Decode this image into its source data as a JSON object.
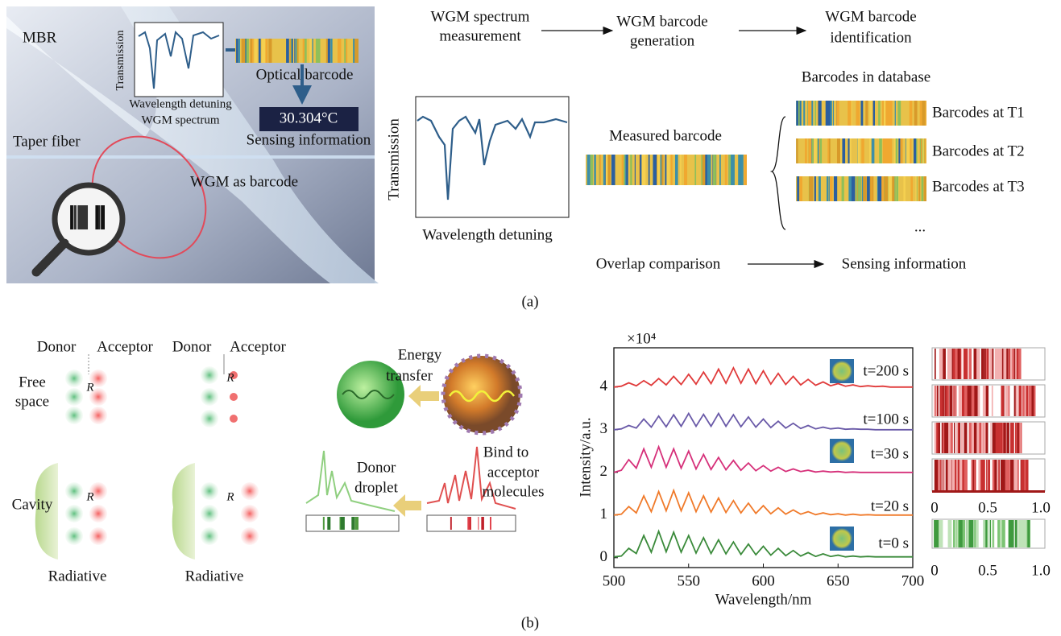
{
  "panel_a": {
    "photo": {
      "mbr": "MBR",
      "inset_y": "Transmission",
      "inset_x": [
        "Wavelength detuning",
        "WGM spectrum"
      ],
      "optical_barcode": "Optical barcode",
      "temperature": "30.304°C",
      "sensing": "Sensing information",
      "taper": "Taper fiber",
      "wgm": "WGM as barcode"
    },
    "flow": {
      "steps": [
        [
          "WGM spectrum",
          "measurement"
        ],
        [
          "WGM barcode",
          "generation"
        ],
        [
          "WGM barcode",
          "identification"
        ]
      ],
      "spectrum_y": "Transmission",
      "spectrum_x": "Wavelength detuning",
      "measured": "Measured barcode",
      "database": "Barcodes in database",
      "barcodes": [
        "Barcodes at T1",
        "Barcodes at T2",
        "Barcodes at T3"
      ],
      "more": "...",
      "comparison": "Overlap comparison",
      "result": "Sensing information"
    },
    "label": "(a)"
  },
  "panel_b": {
    "schematic": {
      "donor": [
        "Donor",
        "Donor"
      ],
      "acceptor": [
        "Acceptor",
        "Acceptor"
      ],
      "free_space": [
        "Free",
        "space"
      ],
      "cavity": "Cavity",
      "r": [
        "R",
        "R",
        "R",
        "R"
      ],
      "radiative": [
        "Radiative",
        "Radiative"
      ],
      "energy_transfer": [
        "Energy",
        "transfer"
      ],
      "donor_droplet": [
        "Donor",
        "droplet"
      ],
      "bind": [
        "Bind to",
        "acceptor",
        "molecules"
      ]
    },
    "colorbar_ticks": [
      0,
      0.5,
      {
        "value": 1,
        "label": "1.0"
      }
    ],
    "label": "(b)"
  },
  "chart_data": {
    "type": "line",
    "xlabel": "Wavelength/nm",
    "ylabel": "Intensity/a.u.",
    "y_multiplier": "×10⁴",
    "x": [
      500,
      505,
      510,
      515,
      520,
      525,
      530,
      535,
      540,
      545,
      550,
      555,
      560,
      565,
      570,
      575,
      580,
      585,
      590,
      595,
      600,
      605,
      610,
      615,
      620,
      625,
      630,
      635,
      640,
      645,
      650,
      655,
      660,
      665,
      670,
      675,
      680,
      685,
      690,
      695,
      700
    ],
    "series": [
      {
        "name": "t=0 s",
        "color": "#3a8a3a",
        "values": [
          0.02,
          0.04,
          0.22,
          0.1,
          0.52,
          0.13,
          0.62,
          0.14,
          0.6,
          0.13,
          0.52,
          0.11,
          0.47,
          0.1,
          0.42,
          0.09,
          0.37,
          0.08,
          0.32,
          0.07,
          0.27,
          0.06,
          0.22,
          0.05,
          0.17,
          0.04,
          0.12,
          0.03,
          0.09,
          0.03,
          0.06,
          0.02,
          0.04,
          0.02,
          0.03,
          0.02,
          0.02,
          0.02,
          0.02,
          0.02,
          0.02
        ]
      },
      {
        "name": "t=20 s",
        "color": "#f07a2a",
        "values": [
          1.0,
          1.02,
          1.2,
          1.05,
          1.45,
          1.08,
          1.55,
          1.1,
          1.58,
          1.1,
          1.52,
          1.08,
          1.45,
          1.07,
          1.4,
          1.06,
          1.34,
          1.05,
          1.28,
          1.04,
          1.22,
          1.03,
          1.17,
          1.02,
          1.12,
          1.02,
          1.08,
          1.01,
          1.05,
          1.01,
          1.03,
          1.0,
          1.02,
          1.0,
          1.01,
          1.0,
          1.0,
          1.0,
          1.0,
          1.0,
          1.0
        ]
      },
      {
        "name": "t=30 s",
        "color": "#d6307a",
        "values": [
          2.0,
          2.05,
          2.3,
          2.1,
          2.55,
          2.12,
          2.6,
          2.12,
          2.55,
          2.1,
          2.5,
          2.08,
          2.42,
          2.07,
          2.35,
          2.06,
          2.28,
          2.05,
          2.22,
          2.04,
          2.16,
          2.03,
          2.12,
          2.02,
          2.08,
          2.02,
          2.05,
          2.01,
          2.03,
          2.01,
          2.02,
          2.0,
          2.01,
          2.0,
          2.0,
          2.0,
          2.0,
          2.0,
          2.0,
          2.0,
          2.0
        ]
      },
      {
        "name": "t=100 s",
        "color": "#6a5aa8",
        "values": [
          3.0,
          3.02,
          3.1,
          3.04,
          3.25,
          3.06,
          3.32,
          3.07,
          3.35,
          3.08,
          3.38,
          3.08,
          3.36,
          3.08,
          3.38,
          3.08,
          3.35,
          3.07,
          3.3,
          3.06,
          3.25,
          3.05,
          3.2,
          3.04,
          3.15,
          3.03,
          3.1,
          3.02,
          3.06,
          3.02,
          3.04,
          3.01,
          3.02,
          3.01,
          3.01,
          3.0,
          3.0,
          3.0,
          3.0,
          3.0,
          3.0
        ]
      },
      {
        "name": "t=200 s",
        "color": "#e03a3a",
        "values": [
          4.0,
          4.02,
          4.1,
          4.03,
          4.15,
          4.04,
          4.2,
          4.05,
          4.25,
          4.06,
          4.3,
          4.07,
          4.35,
          4.08,
          4.42,
          4.09,
          4.45,
          4.09,
          4.42,
          4.08,
          4.38,
          4.07,
          4.32,
          4.06,
          4.25,
          4.05,
          4.18,
          4.04,
          4.12,
          4.03,
          4.08,
          4.02,
          4.05,
          4.01,
          4.03,
          4.01,
          4.02,
          4.0,
          4.0,
          4.0,
          4.0
        ]
      }
    ],
    "xlim": [
      500,
      700
    ],
    "xticks": [
      500,
      550,
      600,
      650,
      700
    ],
    "ylim": [
      -0.23,
      4.92
    ],
    "yticks": [
      0,
      1,
      2,
      3,
      4
    ]
  }
}
